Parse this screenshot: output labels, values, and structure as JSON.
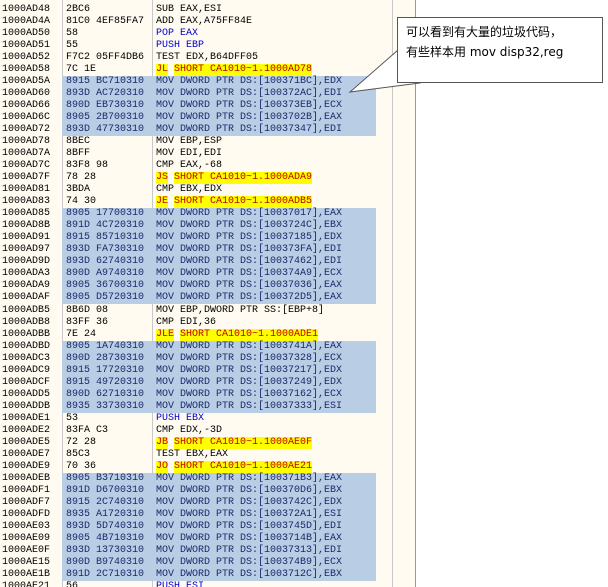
{
  "rows": [
    [
      "1000AD48",
      "2BC6",
      "SUB",
      "EAX,ESI"
    ],
    [
      "1000AD4A",
      "81C0 4EF85FA7",
      "ADD",
      "EAX,A75FF84E"
    ],
    [
      "1000AD50",
      "58",
      "POP",
      "EAX"
    ],
    [
      "1000AD51",
      "55",
      "PUSH",
      "EBP"
    ],
    [
      "1000AD52",
      "F7C2 05FF4DB6",
      "TEST",
      "EDX,B64DFF05"
    ],
    [
      "1000AD58",
      "7C 1E",
      "JL",
      "SHORT CA1010~1.1000AD78"
    ],
    [
      "1000AD5A",
      "8915 BC710310",
      "MOV",
      "DWORD PTR DS:[100371BC],EDX"
    ],
    [
      "1000AD60",
      "893D AC720310",
      "MOV",
      "DWORD PTR DS:[100372AC],EDI"
    ],
    [
      "1000AD66",
      "890D EB730310",
      "MOV",
      "DWORD PTR DS:[100373EB],ECX"
    ],
    [
      "1000AD6C",
      "8905 2B700310",
      "MOV",
      "DWORD PTR DS:[1003702B],EAX"
    ],
    [
      "1000AD72",
      "893D 47730310",
      "MOV",
      "DWORD PTR DS:[10037347],EDI"
    ],
    [
      "1000AD78",
      "8BEC",
      "MOV",
      "EBP,ESP"
    ],
    [
      "1000AD7A",
      "8BFF",
      "MOV",
      "EDI,EDI"
    ],
    [
      "1000AD7C",
      "83F8 98",
      "CMP",
      "EAX,-68"
    ],
    [
      "1000AD7F",
      "78 28",
      "JS",
      "SHORT CA1010~1.1000ADA9"
    ],
    [
      "1000AD81",
      "3BDA",
      "CMP",
      "EBX,EDX"
    ],
    [
      "1000AD83",
      "74 30",
      "JE",
      "SHORT CA1010~1.1000ADB5"
    ],
    [
      "1000AD85",
      "8905 17700310",
      "MOV",
      "DWORD PTR DS:[10037017],EAX"
    ],
    [
      "1000AD8B",
      "891D 4C720310",
      "MOV",
      "DWORD PTR DS:[1003724C],EBX"
    ],
    [
      "1000AD91",
      "8915 85710310",
      "MOV",
      "DWORD PTR DS:[10037185],EDX"
    ],
    [
      "1000AD97",
      "893D FA730310",
      "MOV",
      "DWORD PTR DS:[100373FA],EDI"
    ],
    [
      "1000AD9D",
      "893D 62740310",
      "MOV",
      "DWORD PTR DS:[10037462],EDI"
    ],
    [
      "1000ADA3",
      "890D A9740310",
      "MOV",
      "DWORD PTR DS:[100374A9],ECX"
    ],
    [
      "1000ADA9",
      "8905 36700310",
      "MOV",
      "DWORD PTR DS:[10037036],EAX"
    ],
    [
      "1000ADAF",
      "8905 D5720310",
      "MOV",
      "DWORD PTR DS:[100372D5],EAX"
    ],
    [
      "1000ADB5",
      "8B6D 08",
      "MOV",
      "EBP,DWORD PTR SS:[EBP+8]"
    ],
    [
      "1000ADB8",
      "83FF 36",
      "CMP",
      "EDI,36"
    ],
    [
      "1000ADBB",
      "7E 24",
      "JLE",
      "SHORT CA1010~1.1000ADE1"
    ],
    [
      "1000ADBD",
      "8905 1A740310",
      "MOV",
      "DWORD PTR DS:[1003741A],EAX"
    ],
    [
      "1000ADC3",
      "890D 28730310",
      "MOV",
      "DWORD PTR DS:[10037328],ECX"
    ],
    [
      "1000ADC9",
      "8915 17720310",
      "MOV",
      "DWORD PTR DS:[10037217],EDX"
    ],
    [
      "1000ADCF",
      "8915 49720310",
      "MOV",
      "DWORD PTR DS:[10037249],EDX"
    ],
    [
      "1000ADD5",
      "890D 62710310",
      "MOV",
      "DWORD PTR DS:[10037162],ECX"
    ],
    [
      "1000ADDB",
      "8935 33730310",
      "MOV",
      "DWORD PTR DS:[10037333],ESI"
    ],
    [
      "1000ADE1",
      "53",
      "PUSH",
      "EBX"
    ],
    [
      "1000ADE2",
      "83FA C3",
      "CMP",
      "EDX,-3D"
    ],
    [
      "1000ADE5",
      "72 28",
      "JB",
      "SHORT CA1010~1.1000AE0F"
    ],
    [
      "1000ADE7",
      "85C3",
      "TEST",
      "EBX,EAX"
    ],
    [
      "1000ADE9",
      "70 36",
      "JO",
      "SHORT CA1010~1.1000AE21"
    ],
    [
      "1000ADEB",
      "8905 B3710310",
      "MOV",
      "DWORD PTR DS:[100371B3],EAX"
    ],
    [
      "1000ADF1",
      "891D D6700310",
      "MOV",
      "DWORD PTR DS:[100370D6],EBX"
    ],
    [
      "1000ADF7",
      "8915 2C740310",
      "MOV",
      "DWORD PTR DS:[1003742C],EDX"
    ],
    [
      "1000ADFD",
      "8935 A1720310",
      "MOV",
      "DWORD PTR DS:[100372A1],ESI"
    ],
    [
      "1000AE03",
      "893D 5D740310",
      "MOV",
      "DWORD PTR DS:[1003745D],EDI"
    ],
    [
      "1000AE09",
      "8905 4B710310",
      "MOV",
      "DWORD PTR DS:[1003714B],EAX"
    ],
    [
      "1000AE0F",
      "893D 13730310",
      "MOV",
      "DWORD PTR DS:[10037313],EDI"
    ],
    [
      "1000AE15",
      "890D B9740310",
      "MOV",
      "DWORD PTR DS:[100374B9],ECX"
    ],
    [
      "1000AE1B",
      "891D 2C710310",
      "MOV",
      "DWORD PTR DS:[1003712C],EBX"
    ],
    [
      "1000AE21",
      "56",
      "PUSH",
      "ESI"
    ]
  ],
  "note": {
    "line1": "可以看到有大量的垃圾代码，",
    "line2": "有些样本用 mov disp32,reg"
  }
}
